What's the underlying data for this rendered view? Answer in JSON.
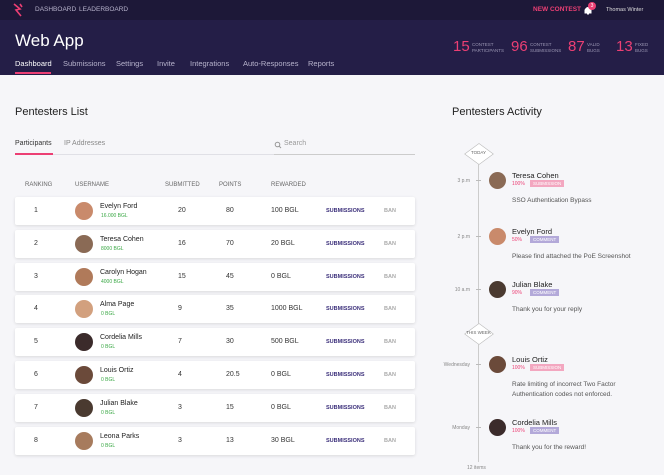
{
  "nav": {
    "items": [
      "DASHBOARD",
      "LEADERBOARD"
    ],
    "new_contest": "NEW CONTEST",
    "notifications": "3",
    "user": "Thomas Winter"
  },
  "header": {
    "title": "Web App",
    "tabs": [
      "Dashboard",
      "Submissions",
      "Settings",
      "Invite",
      "Integrations",
      "Auto-Responses",
      "Reports"
    ],
    "stats": [
      {
        "value": "15",
        "label": [
          "CONTEST",
          "PARTICIPANTS"
        ]
      },
      {
        "value": "96",
        "label": [
          "CONTEST",
          "SUBMISSIONS"
        ]
      },
      {
        "value": "87",
        "label": [
          "VALID",
          "BUGS"
        ]
      },
      {
        "value": "13",
        "label": [
          "FIXED",
          "BUGS"
        ]
      }
    ]
  },
  "list": {
    "title": "Pentesters List",
    "tabs": [
      "Participants",
      "IP Addresses"
    ],
    "search": "Search",
    "columns": [
      "RANKING",
      "USERNAME",
      "SUBMITTED",
      "POINTS",
      "REWARDED"
    ],
    "actions": {
      "submissions": "SUBMISSIONS",
      "ban": "BAN"
    },
    "rows": [
      {
        "rank": "1",
        "name": "Evelyn Ford",
        "balance": "16.000 BGL",
        "submitted": "20",
        "points": "80",
        "rewarded": "100 BGL"
      },
      {
        "rank": "2",
        "name": "Teresa Cohen",
        "balance": "8000 BGL",
        "submitted": "16",
        "points": "70",
        "rewarded": "20 BGL"
      },
      {
        "rank": "3",
        "name": "Carolyn Hogan",
        "balance": "4000 BGL",
        "submitted": "15",
        "points": "45",
        "rewarded": "0 BGL"
      },
      {
        "rank": "4",
        "name": "Alma Page",
        "balance": "0 BGL",
        "submitted": "9",
        "points": "35",
        "rewarded": "1000 BGL"
      },
      {
        "rank": "5",
        "name": "Cordelia Mills",
        "balance": "0 BGL",
        "submitted": "7",
        "points": "30",
        "rewarded": "500 BGL"
      },
      {
        "rank": "6",
        "name": "Louis Ortiz",
        "balance": "0 BGL",
        "submitted": "4",
        "points": "20.5",
        "rewarded": "0 BGL"
      },
      {
        "rank": "7",
        "name": "Julian Blake",
        "balance": "0 BGL",
        "submitted": "3",
        "points": "15",
        "rewarded": "0 BGL"
      },
      {
        "rank": "8",
        "name": "Leona Parks",
        "balance": "0 BGL",
        "submitted": "3",
        "points": "13",
        "rewarded": "30 BGL"
      }
    ]
  },
  "activity": {
    "title": "Pentesters Activity",
    "markers": [
      "TODAY",
      "THIS WEEK"
    ],
    "items": [
      {
        "time": "3 p.m",
        "name": "Teresa Cohen",
        "score": "100%",
        "tag": "SUBMISSION",
        "text": "SSO Authentication Bypass"
      },
      {
        "time": "2 p.m",
        "name": "Evelyn Ford",
        "score": "50%",
        "tag": "COMMENT",
        "text": "Please find attached the PoE Screenshot"
      },
      {
        "time": "10 a.m",
        "name": "Julian Blake",
        "score": "90%",
        "tag": "COMMENT",
        "text": "Thank you for your reply"
      },
      {
        "time": "Wednesday",
        "name": "Louis Ortiz",
        "score": "100%",
        "tag": "SUBMISSION",
        "text": "Rate limiting of incorrect Two Factor Authentication codes not enforced."
      },
      {
        "time": "Monday",
        "name": "Cordelia Mills",
        "score": "100%",
        "tag": "COMMENT",
        "text": "Thank you for the reward!"
      }
    ],
    "footer": "12 items"
  }
}
